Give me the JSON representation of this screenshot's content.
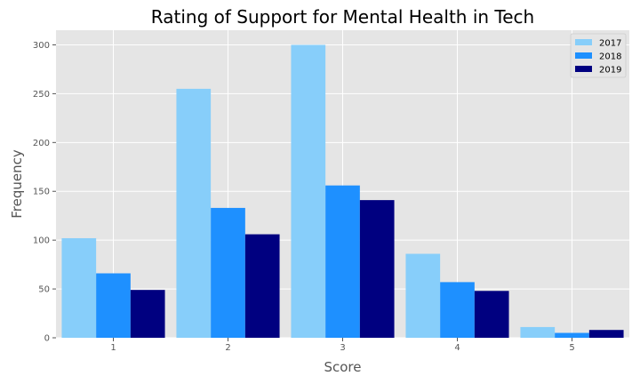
{
  "chart_data": {
    "type": "bar",
    "title": "Rating of Support for Mental Health in Tech",
    "xlabel": "Score",
    "ylabel": "Frequency",
    "categories": [
      "1",
      "2",
      "3",
      "4",
      "5"
    ],
    "series": [
      {
        "name": "2017",
        "color": "#87cefa",
        "values": [
          102,
          255,
          300,
          86,
          11
        ]
      },
      {
        "name": "2018",
        "color": "#1e90ff",
        "values": [
          66,
          133,
          156,
          57,
          5
        ]
      },
      {
        "name": "2019",
        "color": "#000080",
        "values": [
          49,
          106,
          141,
          48,
          8
        ]
      }
    ],
    "ylim": [
      0,
      315
    ],
    "yticks": [
      0,
      50,
      100,
      150,
      200,
      250,
      300
    ],
    "grid": true,
    "legend_position": "top-right",
    "background_color": "#e5e5e5"
  }
}
